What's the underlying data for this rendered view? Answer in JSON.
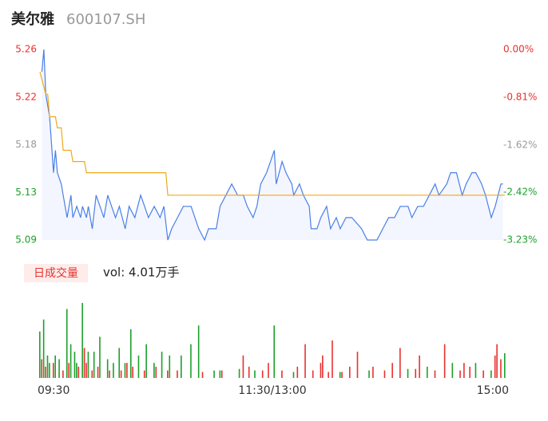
{
  "header": {
    "name": "美尔雅",
    "code": "600107.SH"
  },
  "chart_data": [
    {
      "type": "line",
      "xlim": [
        0,
        240
      ],
      "xticks": [
        {
          "value": 0,
          "label": "09:30"
        },
        {
          "value": 120,
          "label": "11:30/13:00"
        },
        {
          "value": 240,
          "label": "15:00"
        }
      ],
      "ylim": [
        5.09,
        5.26
      ],
      "yticks": [
        5.26,
        {
          "value": 5.2175,
          "label": "5.22"
        },
        {
          "value": 5.175,
          "label": "5.18"
        },
        {
          "value": 5.1325,
          "label": "5.13"
        },
        5.09
      ],
      "ytick_colors": [
        "#e8312f",
        "#e8312f",
        "#999999",
        "#1da02b",
        "#1da02b"
      ],
      "y2lim": [
        -3.23,
        0
      ],
      "y2ticks": [
        {
          "value": 0,
          "label": "0.00%"
        },
        {
          "value": -0.81,
          "label": "-0.81%"
        },
        {
          "value": -1.62,
          "label": "-1.62%"
        },
        {
          "value": -2.42,
          "label": "-2.42%"
        },
        {
          "value": -3.23,
          "label": "-3.23%"
        }
      ],
      "y2tick_colors": [
        "#e8312f",
        "#e8312f",
        "#999999",
        "#1da02b",
        "#1da02b"
      ],
      "series": [
        {
          "color": "#4a7fe8",
          "x": [
            1,
            2,
            3,
            5,
            7,
            8,
            9,
            11,
            12,
            14,
            16,
            17,
            19,
            21,
            22,
            24,
            25,
            27,
            29,
            31,
            33,
            35,
            37,
            39,
            41,
            44,
            46,
            49,
            52,
            54,
            56,
            59,
            62,
            64,
            66,
            68,
            71,
            74,
            78,
            80,
            82,
            85,
            87,
            91,
            93,
            96,
            99,
            102,
            105,
            107,
            110,
            112,
            114,
            117,
            119,
            121,
            122,
            125,
            127,
            130,
            131,
            134,
            136,
            139,
            140,
            143,
            145,
            148,
            150,
            153,
            155,
            158,
            161,
            166,
            169,
            174,
            177,
            180,
            183,
            186,
            190,
            192,
            195,
            198,
            201,
            204,
            206,
            210,
            212,
            215,
            218,
            220,
            223,
            225,
            228,
            230,
            233,
            235,
            238,
            239
          ],
          "values": [
            5.24,
            5.26,
            5.22,
            5.2,
            5.15,
            5.17,
            5.15,
            5.14,
            5.13,
            5.11,
            5.13,
            5.11,
            5.12,
            5.11,
            5.12,
            5.11,
            5.12,
            5.1,
            5.13,
            5.12,
            5.11,
            5.13,
            5.12,
            5.11,
            5.12,
            5.1,
            5.12,
            5.11,
            5.13,
            5.12,
            5.11,
            5.12,
            5.11,
            5.12,
            5.09,
            5.1,
            5.11,
            5.12,
            5.12,
            5.11,
            5.1,
            5.09,
            5.1,
            5.1,
            5.12,
            5.13,
            5.14,
            5.13,
            5.13,
            5.12,
            5.11,
            5.12,
            5.14,
            5.15,
            5.16,
            5.17,
            5.14,
            5.16,
            5.15,
            5.14,
            5.13,
            5.14,
            5.13,
            5.12,
            5.1,
            5.1,
            5.11,
            5.12,
            5.1,
            5.11,
            5.1,
            5.11,
            5.11,
            5.1,
            5.09,
            5.09,
            5.1,
            5.11,
            5.11,
            5.12,
            5.12,
            5.11,
            5.12,
            5.12,
            5.13,
            5.14,
            5.13,
            5.14,
            5.15,
            5.15,
            5.13,
            5.14,
            5.15,
            5.15,
            5.14,
            5.13,
            5.11,
            5.12,
            5.14,
            5.14
          ]
        },
        {
          "color": "#f0a81c",
          "x": [
            0,
            3,
            4,
            5,
            8,
            9,
            11,
            12,
            16,
            17,
            23,
            24,
            65,
            66,
            240
          ],
          "values": [
            5.24,
            5.22,
            5.22,
            5.2,
            5.2,
            5.19,
            5.19,
            5.17,
            5.17,
            5.16,
            5.16,
            5.15,
            5.15,
            5.13,
            5.13
          ]
        }
      ]
    },
    {
      "type": "bar",
      "title": "日成交量",
      "subtitle": "vol: 4.01万手",
      "ylim": [
        0,
        100
      ],
      "series": [
        {
          "color": "#1da02b",
          "x": [
            0,
            2,
            4,
            5,
            8,
            10,
            14,
            16,
            18,
            19,
            22,
            25,
            28,
            31,
            35,
            38,
            41,
            44,
            47,
            51,
            55,
            59,
            63,
            67,
            73,
            78,
            82,
            90,
            93,
            103,
            111,
            121,
            131,
            155,
            170,
            190,
            200,
            213,
            225,
            233,
            240
          ],
          "values": [
            62,
            78,
            30,
            20,
            30,
            25,
            92,
            45,
            35,
            20,
            100,
            35,
            35,
            55,
            25,
            20,
            40,
            20,
            65,
            30,
            45,
            20,
            35,
            30,
            30,
            45,
            70,
            10,
            10,
            12,
            10,
            70,
            8,
            8,
            10,
            12,
            15,
            20,
            20,
            10,
            33
          ]
        },
        {
          "color": "#e8312f",
          "x": [
            1,
            3,
            7,
            12,
            15,
            20,
            23,
            24,
            27,
            30,
            36,
            42,
            45,
            48,
            54,
            60,
            66,
            71,
            84,
            94,
            105,
            108,
            115,
            118,
            125,
            133,
            137,
            141,
            145,
            146,
            149,
            151,
            156,
            160,
            164,
            172,
            178,
            182,
            186,
            194,
            196,
            204,
            209,
            217,
            219,
            222,
            229,
            235,
            236,
            238
          ],
          "values": [
            25,
            15,
            20,
            10,
            20,
            15,
            40,
            20,
            10,
            15,
            10,
            10,
            20,
            15,
            10,
            15,
            10,
            10,
            8,
            10,
            30,
            15,
            10,
            20,
            10,
            15,
            45,
            10,
            20,
            30,
            8,
            50,
            8,
            15,
            35,
            15,
            10,
            20,
            40,
            12,
            30,
            10,
            45,
            10,
            20,
            15,
            10,
            30,
            45,
            25
          ]
        }
      ]
    }
  ]
}
